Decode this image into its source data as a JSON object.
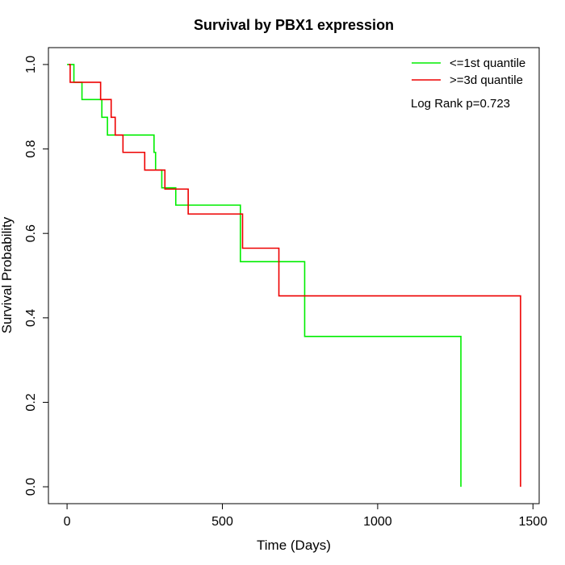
{
  "chart_data": {
    "type": "line",
    "title": "Survival by PBX1 expression",
    "xlabel": "Time (Days)",
    "ylabel": "Survival Probability",
    "xlim": [
      -60,
      1520
    ],
    "ylim": [
      -0.04,
      1.04
    ],
    "x_ticks": [
      0,
      500,
      1000,
      1500
    ],
    "x_tick_labels": [
      "0",
      "500",
      "1000",
      "1500"
    ],
    "y_ticks": [
      0.0,
      0.2,
      0.4,
      0.6,
      0.8,
      1.0
    ],
    "y_tick_labels": [
      "0.0",
      "0.2",
      "0.4",
      "0.6",
      "0.8",
      "1.0"
    ],
    "grid": false,
    "legend_position": "top-right",
    "annotation": "Log Rank p=0.723",
    "series": [
      {
        "name": "<=1st quantile",
        "color": "#00ee00",
        "steps": [
          [
            0,
            1.0
          ],
          [
            22,
            0.958
          ],
          [
            48,
            0.917
          ],
          [
            112,
            0.875
          ],
          [
            130,
            0.833
          ],
          [
            280,
            0.792
          ],
          [
            285,
            0.75
          ],
          [
            305,
            0.708
          ],
          [
            350,
            0.667
          ],
          [
            558,
            0.533
          ],
          [
            765,
            0.356
          ],
          [
            1268,
            0.0
          ]
        ]
      },
      {
        "name": ">=3d quantile",
        "color": "#ee0000",
        "steps": [
          [
            5,
            1.0
          ],
          [
            10,
            0.958
          ],
          [
            108,
            0.917
          ],
          [
            142,
            0.875
          ],
          [
            155,
            0.833
          ],
          [
            180,
            0.792
          ],
          [
            250,
            0.75
          ],
          [
            300,
            0.75
          ],
          [
            315,
            0.705
          ],
          [
            390,
            0.646
          ],
          [
            565,
            0.565
          ],
          [
            682,
            0.452
          ],
          [
            1460,
            0.0
          ]
        ]
      }
    ]
  }
}
